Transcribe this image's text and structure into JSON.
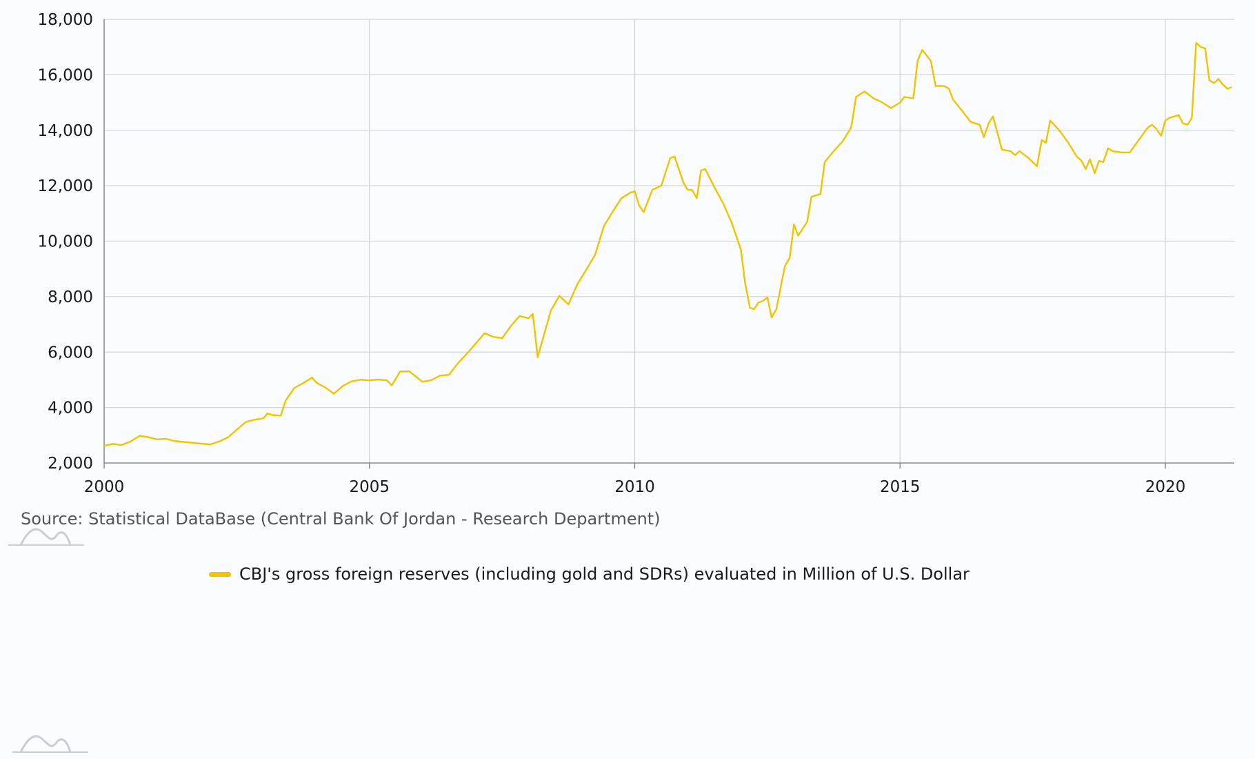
{
  "colors": {
    "series": "#f2c300",
    "grid": "#cfd5dc",
    "axis": "#7a7a7a",
    "background": "#fafcfe"
  },
  "source": "Source: Statistical DataBase (Central Bank Of Jordan - Research Department)",
  "logos": [
    "wave-logo-icon",
    "wave-logo-icon"
  ],
  "chart_data": {
    "type": "line",
    "title": "",
    "xlabel": "",
    "ylabel": "",
    "xlim": [
      2000,
      2021.3
    ],
    "ylim": [
      2000,
      18000
    ],
    "x_ticks": [
      "2000",
      "2005",
      "2010",
      "2015",
      "2020"
    ],
    "y_ticks": [
      "2,000",
      "4,000",
      "6,000",
      "8,000",
      "10,000",
      "12,000",
      "14,000",
      "16,000",
      "18,000"
    ],
    "grid": true,
    "legend": "bottom",
    "series": [
      {
        "name": "CBJ's gross foreign reserves (including gold and SDRs) evaluated in Million of U.S. Dollar",
        "points": [
          [
            2000.0,
            2620
          ],
          [
            2000.17,
            2690
          ],
          [
            2000.33,
            2650
          ],
          [
            2000.5,
            2780
          ],
          [
            2000.67,
            2980
          ],
          [
            2000.83,
            2930
          ],
          [
            2001.0,
            2850
          ],
          [
            2001.17,
            2870
          ],
          [
            2001.33,
            2790
          ],
          [
            2001.5,
            2760
          ],
          [
            2001.67,
            2730
          ],
          [
            2001.83,
            2700
          ],
          [
            2002.0,
            2670
          ],
          [
            2002.17,
            2780
          ],
          [
            2002.33,
            2920
          ],
          [
            2002.5,
            3200
          ],
          [
            2002.67,
            3480
          ],
          [
            2002.83,
            3560
          ],
          [
            2003.0,
            3610
          ],
          [
            2003.08,
            3790
          ],
          [
            2003.17,
            3730
          ],
          [
            2003.33,
            3710
          ],
          [
            2003.42,
            4250
          ],
          [
            2003.58,
            4700
          ],
          [
            2003.75,
            4880
          ],
          [
            2003.92,
            5080
          ],
          [
            2004.0,
            4900
          ],
          [
            2004.17,
            4720
          ],
          [
            2004.33,
            4500
          ],
          [
            2004.5,
            4780
          ],
          [
            2004.67,
            4950
          ],
          [
            2004.83,
            5000
          ],
          [
            2005.0,
            4980
          ],
          [
            2005.17,
            5010
          ],
          [
            2005.33,
            4980
          ],
          [
            2005.42,
            4800
          ],
          [
            2005.58,
            5300
          ],
          [
            2005.75,
            5310
          ],
          [
            2005.92,
            5050
          ],
          [
            2006.0,
            4930
          ],
          [
            2006.17,
            4990
          ],
          [
            2006.33,
            5150
          ],
          [
            2006.5,
            5180
          ],
          [
            2006.67,
            5600
          ],
          [
            2006.83,
            5930
          ],
          [
            2007.0,
            6300
          ],
          [
            2007.17,
            6680
          ],
          [
            2007.33,
            6550
          ],
          [
            2007.5,
            6500
          ],
          [
            2007.67,
            6950
          ],
          [
            2007.83,
            7300
          ],
          [
            2008.0,
            7220
          ],
          [
            2008.08,
            7380
          ],
          [
            2008.17,
            5820
          ],
          [
            2008.25,
            6350
          ],
          [
            2008.42,
            7500
          ],
          [
            2008.58,
            8030
          ],
          [
            2008.75,
            7720
          ],
          [
            2008.92,
            8450
          ],
          [
            2009.08,
            8950
          ],
          [
            2009.25,
            9500
          ],
          [
            2009.42,
            10550
          ],
          [
            2009.58,
            11050
          ],
          [
            2009.75,
            11550
          ],
          [
            2009.92,
            11750
          ],
          [
            2010.0,
            11800
          ],
          [
            2010.08,
            11300
          ],
          [
            2010.17,
            11050
          ],
          [
            2010.33,
            11850
          ],
          [
            2010.5,
            12000
          ],
          [
            2010.67,
            13000
          ],
          [
            2010.75,
            13050
          ],
          [
            2010.92,
            12100
          ],
          [
            2011.0,
            11850
          ],
          [
            2011.08,
            11850
          ],
          [
            2011.17,
            11550
          ],
          [
            2011.25,
            12550
          ],
          [
            2011.33,
            12600
          ],
          [
            2011.5,
            11950
          ],
          [
            2011.67,
            11350
          ],
          [
            2011.83,
            10650
          ],
          [
            2012.0,
            9700
          ],
          [
            2012.08,
            8500
          ],
          [
            2012.17,
            7600
          ],
          [
            2012.25,
            7550
          ],
          [
            2012.33,
            7780
          ],
          [
            2012.42,
            7850
          ],
          [
            2012.5,
            7970
          ],
          [
            2012.58,
            7250
          ],
          [
            2012.67,
            7550
          ],
          [
            2012.83,
            9100
          ],
          [
            2012.92,
            9400
          ],
          [
            2013.0,
            10600
          ],
          [
            2013.08,
            10200
          ],
          [
            2013.25,
            10700
          ],
          [
            2013.33,
            11600
          ],
          [
            2013.5,
            11700
          ],
          [
            2013.58,
            12850
          ],
          [
            2013.75,
            13250
          ],
          [
            2013.92,
            13600
          ],
          [
            2014.08,
            14100
          ],
          [
            2014.17,
            15200
          ],
          [
            2014.33,
            15400
          ],
          [
            2014.5,
            15150
          ],
          [
            2014.67,
            15000
          ],
          [
            2014.83,
            14800
          ],
          [
            2015.0,
            15000
          ],
          [
            2015.08,
            15200
          ],
          [
            2015.25,
            15150
          ],
          [
            2015.33,
            16500
          ],
          [
            2015.42,
            16900
          ],
          [
            2015.58,
            16500
          ],
          [
            2015.67,
            15600
          ],
          [
            2015.83,
            15600
          ],
          [
            2015.92,
            15500
          ],
          [
            2016.0,
            15100
          ],
          [
            2016.17,
            14700
          ],
          [
            2016.33,
            14300
          ],
          [
            2016.5,
            14200
          ],
          [
            2016.58,
            13750
          ],
          [
            2016.67,
            14250
          ],
          [
            2016.75,
            14500
          ],
          [
            2016.83,
            13950
          ],
          [
            2016.92,
            13300
          ],
          [
            2017.08,
            13250
          ],
          [
            2017.17,
            13100
          ],
          [
            2017.25,
            13250
          ],
          [
            2017.42,
            13000
          ],
          [
            2017.58,
            12700
          ],
          [
            2017.67,
            13650
          ],
          [
            2017.75,
            13550
          ],
          [
            2017.83,
            14350
          ],
          [
            2018.0,
            14000
          ],
          [
            2018.17,
            13550
          ],
          [
            2018.33,
            13050
          ],
          [
            2018.42,
            12900
          ],
          [
            2018.5,
            12600
          ],
          [
            2018.58,
            12950
          ],
          [
            2018.67,
            12450
          ],
          [
            2018.75,
            12900
          ],
          [
            2018.83,
            12850
          ],
          [
            2018.92,
            13350
          ],
          [
            2019.0,
            13250
          ],
          [
            2019.17,
            13200
          ],
          [
            2019.33,
            13200
          ],
          [
            2019.5,
            13650
          ],
          [
            2019.67,
            14100
          ],
          [
            2019.75,
            14200
          ],
          [
            2019.83,
            14050
          ],
          [
            2019.92,
            13800
          ],
          [
            2020.0,
            14350
          ],
          [
            2020.08,
            14450
          ],
          [
            2020.17,
            14500
          ],
          [
            2020.25,
            14550
          ],
          [
            2020.33,
            14250
          ],
          [
            2020.42,
            14200
          ],
          [
            2020.5,
            14450
          ],
          [
            2020.58,
            17150
          ],
          [
            2020.67,
            17000
          ],
          [
            2020.75,
            16950
          ],
          [
            2020.83,
            15800
          ],
          [
            2020.92,
            15700
          ],
          [
            2021.0,
            15850
          ],
          [
            2021.08,
            15650
          ],
          [
            2021.17,
            15500
          ],
          [
            2021.25,
            15550
          ]
        ]
      }
    ]
  }
}
